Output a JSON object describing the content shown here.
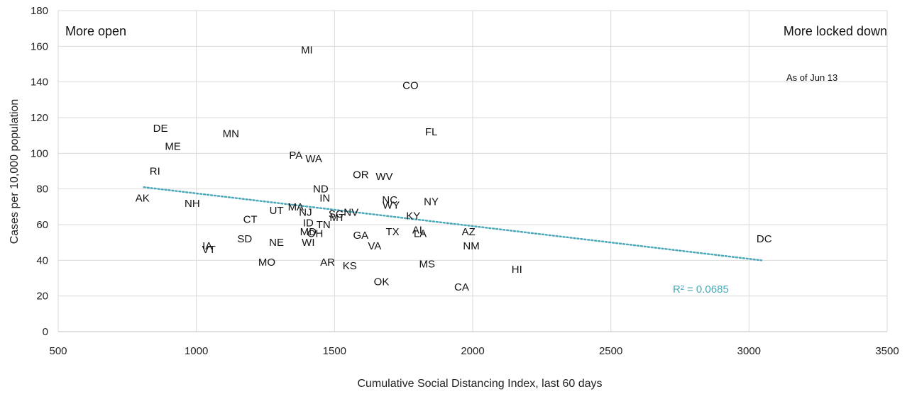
{
  "chart_data": {
    "type": "scatter",
    "xlabel": "Cumulative Social Distancing Index, last 60 days",
    "ylabel": "Cases per 10,000 population",
    "xlim": [
      500,
      3500
    ],
    "ylim": [
      0,
      180
    ],
    "x_ticks": [
      500,
      1000,
      1500,
      2000,
      2500,
      3000,
      3500
    ],
    "y_ticks": [
      0,
      20,
      40,
      60,
      80,
      100,
      120,
      140,
      160,
      180
    ],
    "grid": true,
    "annotations": {
      "left": "More open",
      "right": "More locked down",
      "as_of": "As of Jun 13"
    },
    "trendline": {
      "type": "linear",
      "style": "dotted",
      "color": "#4aa8b8",
      "x_start": 810,
      "y_start": 81,
      "x_end": 3045,
      "y_end": 40,
      "r2_label": "R² = 0.0685"
    },
    "points": [
      {
        "label": "MI",
        "x": 1400,
        "y": 158
      },
      {
        "label": "CO",
        "x": 1775,
        "y": 138
      },
      {
        "label": "DE",
        "x": 870,
        "y": 114
      },
      {
        "label": "MN",
        "x": 1125,
        "y": 111
      },
      {
        "label": "FL",
        "x": 1850,
        "y": 112
      },
      {
        "label": "ME",
        "x": 915,
        "y": 104
      },
      {
        "label": "PA",
        "x": 1360,
        "y": 99
      },
      {
        "label": "WA",
        "x": 1425,
        "y": 97
      },
      {
        "label": "RI",
        "x": 850,
        "y": 90
      },
      {
        "label": "OR",
        "x": 1595,
        "y": 88
      },
      {
        "label": "WV",
        "x": 1680,
        "y": 87
      },
      {
        "label": "ND",
        "x": 1450,
        "y": 80
      },
      {
        "label": "IN",
        "x": 1465,
        "y": 75
      },
      {
        "label": "AK",
        "x": 805,
        "y": 75
      },
      {
        "label": "NC",
        "x": 1700,
        "y": 74
      },
      {
        "label": "NY",
        "x": 1850,
        "y": 73
      },
      {
        "label": "WY",
        "x": 1705,
        "y": 71
      },
      {
        "label": "NH",
        "x": 985,
        "y": 72
      },
      {
        "label": "MA",
        "x": 1360,
        "y": 70
      },
      {
        "label": "UT",
        "x": 1290,
        "y": 68
      },
      {
        "label": "NJ",
        "x": 1395,
        "y": 67
      },
      {
        "label": "NV",
        "x": 1560,
        "y": 67
      },
      {
        "label": "SC",
        "x": 1505,
        "y": 66
      },
      {
        "label": "KY",
        "x": 1785,
        "y": 65
      },
      {
        "label": "MT",
        "x": 1510,
        "y": 64
      },
      {
        "label": "CT",
        "x": 1195,
        "y": 63
      },
      {
        "label": "ID",
        "x": 1405,
        "y": 61
      },
      {
        "label": "TN",
        "x": 1460,
        "y": 60
      },
      {
        "label": "AZ",
        "x": 1985,
        "y": 56
      },
      {
        "label": "MD",
        "x": 1405,
        "y": 56
      },
      {
        "label": "OH",
        "x": 1430,
        "y": 55
      },
      {
        "label": "TX",
        "x": 1710,
        "y": 56
      },
      {
        "label": "AL",
        "x": 1805,
        "y": 57
      },
      {
        "label": "LA",
        "x": 1810,
        "y": 55
      },
      {
        "label": "GA",
        "x": 1595,
        "y": 54
      },
      {
        "label": "DC",
        "x": 3055,
        "y": 52
      },
      {
        "label": "SD",
        "x": 1175,
        "y": 52
      },
      {
        "label": "WI",
        "x": 1405,
        "y": 50
      },
      {
        "label": "NE",
        "x": 1290,
        "y": 50
      },
      {
        "label": "VA",
        "x": 1645,
        "y": 48
      },
      {
        "label": "NM",
        "x": 1995,
        "y": 48
      },
      {
        "label": "IA",
        "x": 1040,
        "y": 48
      },
      {
        "label": "VT",
        "x": 1045,
        "y": 46
      },
      {
        "label": "MO",
        "x": 1255,
        "y": 39
      },
      {
        "label": "AR",
        "x": 1475,
        "y": 39
      },
      {
        "label": "MS",
        "x": 1835,
        "y": 38
      },
      {
        "label": "KS",
        "x": 1555,
        "y": 37
      },
      {
        "label": "HI",
        "x": 2160,
        "y": 35
      },
      {
        "label": "OK",
        "x": 1670,
        "y": 28
      },
      {
        "label": "CA",
        "x": 1960,
        "y": 25
      }
    ]
  }
}
